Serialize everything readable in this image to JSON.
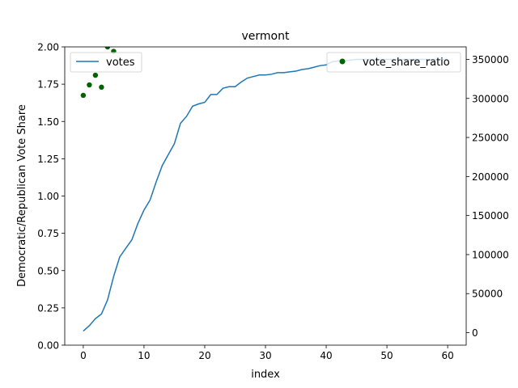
{
  "chart_data": {
    "type": "line",
    "title": "vermont",
    "xlabel": "index",
    "ylabel": "Democratic/Republican Vote Share",
    "y2label": "",
    "xlim": [
      -3.05,
      63.05
    ],
    "ylim": [
      0,
      2.0
    ],
    "y2lim": [
      -16000,
      366000
    ],
    "x_ticks": [
      0,
      10,
      20,
      30,
      40,
      50,
      60
    ],
    "y_ticks": [
      0.0,
      0.25,
      0.5,
      0.75,
      1.0,
      1.25,
      1.5,
      1.75,
      2.0
    ],
    "y_tick_labels": [
      "0.00",
      "0.25",
      "0.50",
      "0.75",
      "1.00",
      "1.25",
      "1.50",
      "1.75",
      "2.00"
    ],
    "y2_ticks": [
      0,
      50000,
      100000,
      150000,
      200000,
      250000,
      300000,
      350000
    ],
    "y2_tick_labels": [
      "0",
      "50000",
      "100000",
      "150000",
      "200000",
      "250000",
      "300000",
      "350000"
    ],
    "grid": false,
    "series": [
      {
        "name": "votes",
        "kind": "line",
        "axis": "right",
        "color": "#1f77b4",
        "x": [
          0,
          1,
          2,
          3,
          4,
          5,
          6,
          7,
          8,
          9,
          10,
          11,
          12,
          13,
          14,
          15,
          16,
          17,
          18,
          19,
          20,
          21,
          22,
          23,
          24,
          25,
          26,
          27,
          28,
          29,
          30,
          31,
          32,
          33,
          34,
          35,
          36,
          37,
          38,
          39,
          40,
          41,
          42,
          43,
          44,
          45,
          46,
          47,
          48,
          49,
          50,
          51,
          52,
          53,
          54,
          55,
          56,
          57,
          58,
          59,
          60
        ],
        "y": [
          2000,
          9000,
          18000,
          24000,
          42000,
          72000,
          97000,
          108000,
          119000,
          140000,
          157000,
          170000,
          193000,
          214000,
          228000,
          242000,
          268000,
          277000,
          290000,
          293000,
          295000,
          305000,
          305000,
          313000,
          315000,
          315000,
          321000,
          326000,
          328000,
          330000,
          330000,
          331000,
          333000,
          333000,
          334000,
          335000,
          337000,
          338000,
          340000,
          342000,
          343000,
          347000,
          348000,
          348000,
          349000,
          350000,
          350000,
          350000,
          350000,
          350000,
          350000,
          350000,
          350000,
          350000,
          350000,
          350000,
          350000,
          350000,
          350000,
          350000,
          350000
        ]
      },
      {
        "name": "vote_share_ratio",
        "kind": "scatter",
        "axis": "left",
        "color": "#006400",
        "x": [
          0,
          1,
          2,
          3,
          4,
          5
        ],
        "y": [
          1.675,
          1.745,
          1.81,
          1.73,
          2.0,
          1.97
        ]
      }
    ],
    "legends": [
      {
        "placement": "upper-left",
        "entries": [
          "votes"
        ]
      },
      {
        "placement": "upper-right",
        "entries": [
          "vote_share_ratio"
        ]
      }
    ]
  }
}
